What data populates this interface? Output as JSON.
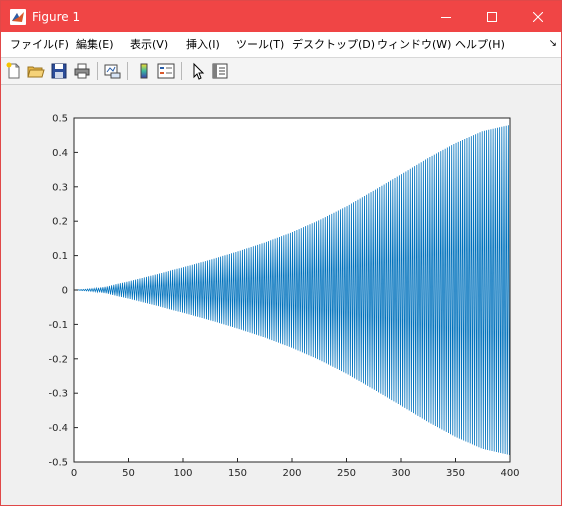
{
  "window": {
    "title": "Figure 1",
    "controls": {
      "minimize": "minimize-icon",
      "maximize": "maximize-icon",
      "close": "close-icon"
    }
  },
  "menu": {
    "items": [
      "ファイル(F)",
      "編集(E)",
      "表示(V)",
      "挿入(I)",
      "ツール(T)",
      "デスクトップ(D)",
      "ウィンドウ(W)",
      "ヘルプ(H)"
    ],
    "overflow": "↘"
  },
  "toolbar": {
    "tools": [
      "new-figure-icon",
      "open-icon",
      "save-icon",
      "print-icon",
      "link-plot-icon",
      "colorbar-icon",
      "legend-icon",
      "pointer-icon",
      "property-inspector-icon"
    ]
  },
  "chart_data": {
    "type": "line",
    "title": "",
    "xlabel": "",
    "ylabel": "",
    "xlim": [
      0,
      400
    ],
    "ylim": [
      -0.5,
      0.5
    ],
    "xticks": [
      0,
      50,
      100,
      150,
      200,
      250,
      300,
      350,
      400
    ],
    "yticks": [
      -0.5,
      -0.4,
      -0.3,
      -0.2,
      -0.1,
      0,
      0.1,
      0.2,
      0.3,
      0.4,
      0.5
    ],
    "grid": false,
    "series": [
      {
        "color": "#0072bd",
        "description_of_shape": "",
        "oscillation_cycles": 200,
        "envelope": {
          "x": [
            0,
            10,
            20,
            30,
            40,
            50,
            60,
            70,
            80,
            90,
            100,
            125,
            150,
            175,
            200,
            225,
            250,
            275,
            300,
            325,
            350,
            375,
            400
          ],
          "amplitude": [
            0,
            0.002,
            0.005,
            0.01,
            0.018,
            0.025,
            0.033,
            0.041,
            0.049,
            0.058,
            0.066,
            0.088,
            0.112,
            0.138,
            0.168,
            0.203,
            0.243,
            0.289,
            0.336,
            0.384,
            0.427,
            0.462,
            0.48
          ]
        },
        "end_value": 0.03
      }
    ]
  }
}
